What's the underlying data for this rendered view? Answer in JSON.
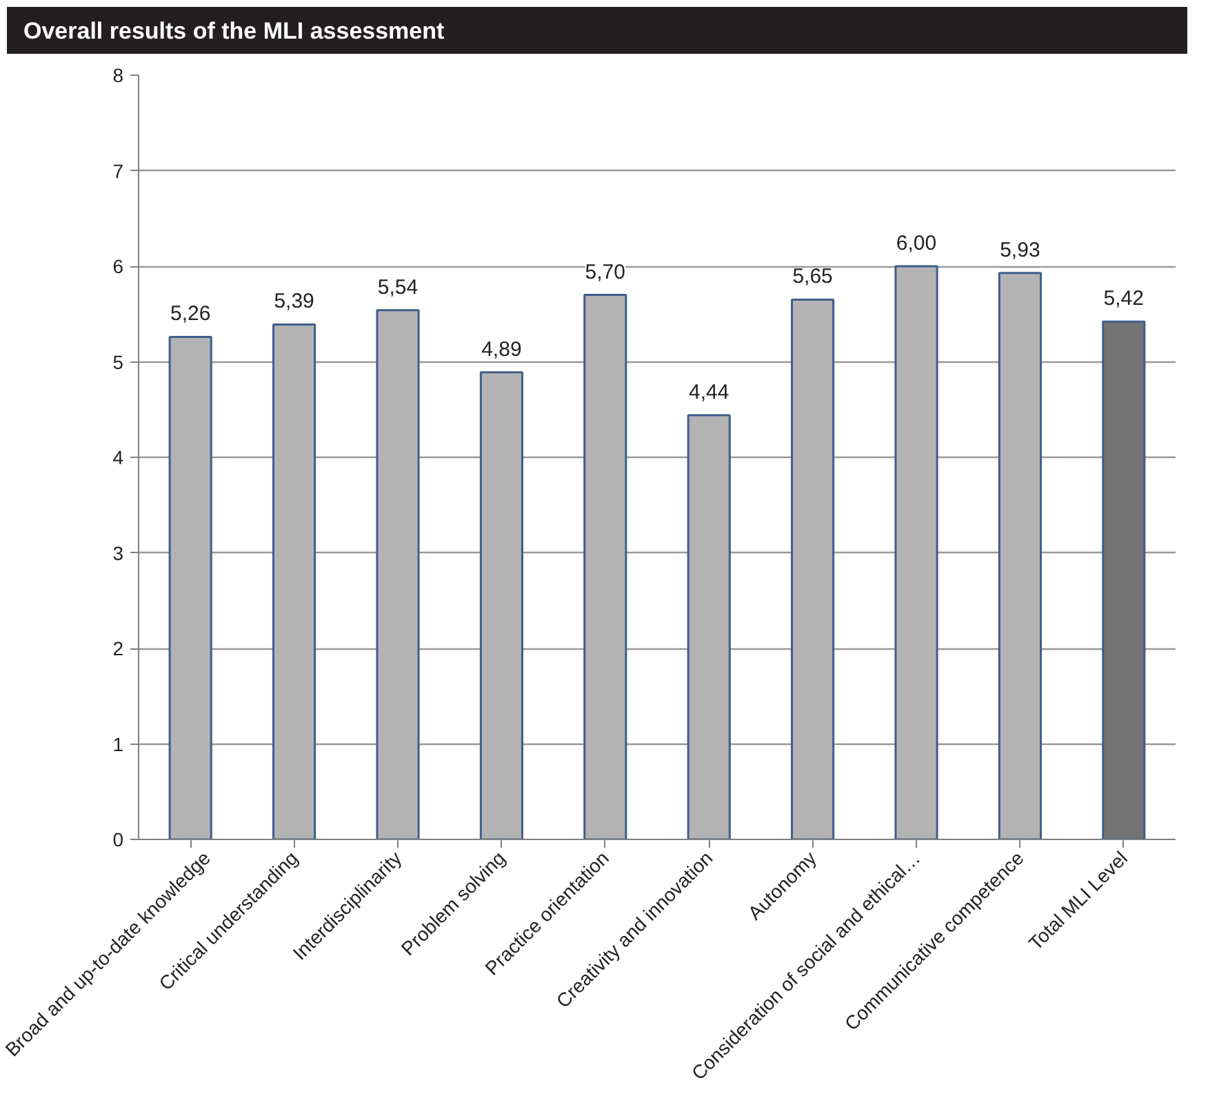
{
  "chart_data": {
    "type": "bar",
    "title": "Overall results of the MLI assessment",
    "categories": [
      "Broad and up-to-date knowledge",
      "Critical understanding",
      "Interdisciplinarity",
      "Problem solving",
      "Practice orientation",
      "Creativity and innovation",
      "Autonomy",
      "Consideration of social and ethical…",
      "Communicative competence",
      "Total MLI Level"
    ],
    "values": [
      5.26,
      5.39,
      5.54,
      4.89,
      5.7,
      4.44,
      5.65,
      6.0,
      5.93,
      5.42
    ],
    "colors": [
      "#b3b3b3",
      "#b3b3b3",
      "#b3b3b3",
      "#b3b3b3",
      "#b3b3b3",
      "#b3b3b3",
      "#b3b3b3",
      "#b3b3b3",
      "#b3b3b3",
      "#737373"
    ],
    "value_labels": [
      "5,26",
      "5,39",
      "5,54",
      "4,89",
      "5,70",
      "4,44",
      "5,65",
      "6,00",
      "5,93",
      "5,42"
    ],
    "ylim": [
      0,
      8
    ],
    "yticks": [
      0,
      1,
      2,
      3,
      4,
      5,
      6,
      7,
      8
    ],
    "grid": "y"
  }
}
